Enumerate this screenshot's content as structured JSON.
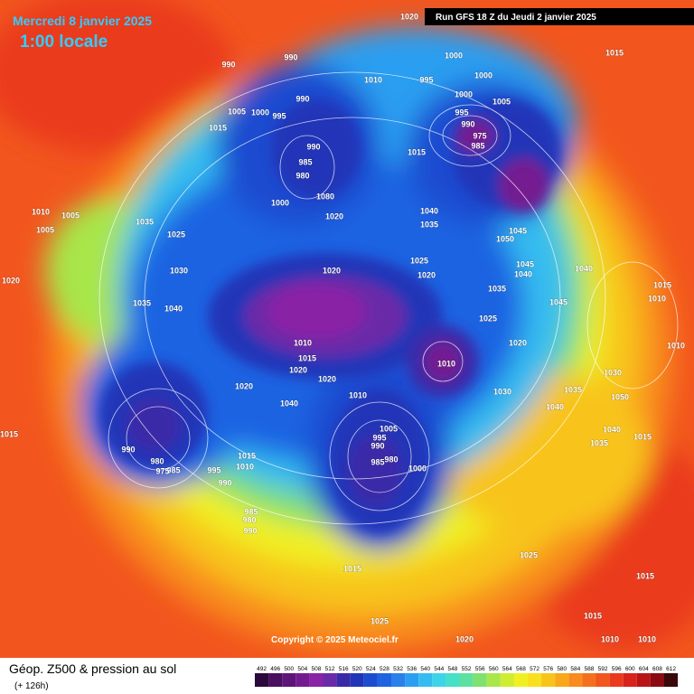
{
  "header": {
    "date": "Mercredi 8 janvier 2025",
    "time": "1:00 locale",
    "run": "Run GFS 18 Z du Jeudi 2 janvier 2025"
  },
  "footer": {
    "copyright": "Copyright © 2025 Meteociel.fr",
    "product": "Géop. Z500 & pression au sol",
    "lead": "(+ 126h)"
  },
  "isobar_labels": [
    "1020",
    "990",
    "990",
    "1010",
    "995",
    "1000",
    "1000",
    "1015",
    "1000",
    "1005",
    "995",
    "990",
    "975",
    "985",
    "1005",
    "1000",
    "995",
    "990",
    "1015",
    "990",
    "985",
    "980",
    "1015",
    "1000",
    "1080",
    "1020",
    "1040",
    "1035",
    "1050",
    "1045",
    "1010",
    "1005",
    "1005",
    "1035",
    "1025",
    "1030",
    "1020",
    "1025",
    "1020",
    "1045",
    "1040",
    "1040",
    "1035",
    "1015",
    "1010",
    "1045",
    "1020",
    "1035",
    "1040",
    "1025",
    "1010",
    "1015",
    "1020",
    "1020",
    "1010",
    "1020",
    "1010",
    "1030",
    "1035",
    "1030",
    "1020",
    "1010",
    "1040",
    "1040",
    "1005",
    "995",
    "990",
    "985",
    "980",
    "1000",
    "990",
    "980",
    "985",
    "975",
    "1015",
    "1010",
    "995",
    "990",
    "985",
    "980",
    "990",
    "1015",
    "1040",
    "1035",
    "1015",
    "1050",
    "1025",
    "1015",
    "1015",
    "1025",
    "1020",
    "1015",
    "1010",
    "1010"
  ],
  "colorbar": {
    "ticks": [
      492,
      496,
      500,
      504,
      508,
      512,
      516,
      520,
      524,
      528,
      532,
      536,
      540,
      544,
      548,
      552,
      556,
      560,
      564,
      568,
      572,
      576,
      580,
      584,
      588,
      592,
      596,
      600,
      604,
      608,
      612
    ],
    "colors": [
      "#2a0a3a",
      "#4a0f5e",
      "#5e1478",
      "#741a90",
      "#8a22a6",
      "#6a2aa8",
      "#3a2aa8",
      "#2036b8",
      "#1c4cd0",
      "#1e64e2",
      "#2a80ea",
      "#2c9ef0",
      "#34bcf0",
      "#3cd4e8",
      "#44e0c8",
      "#5ee0a0",
      "#80e070",
      "#a8e64a",
      "#d0ec30",
      "#f0f020",
      "#f8e01c",
      "#f8c41a",
      "#f8a81a",
      "#f88c1c",
      "#f4701e",
      "#f0561e",
      "#ea3a1e",
      "#d8221c",
      "#b81418",
      "#8a0c12",
      "#3a0808"
    ]
  }
}
